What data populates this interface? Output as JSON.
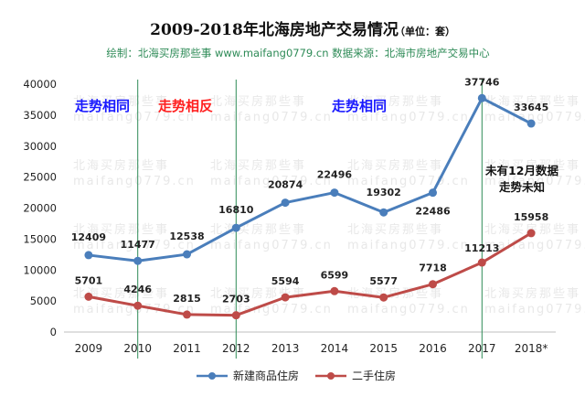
{
  "title": "2009-2018年北海房地产交易情况",
  "title_unit": "（单位：套）",
  "subtitle": "绘制：北海买房那些事 www.maifang0779.cn    数据来源：北海市房地产交易中心",
  "watermark": {
    "text_cn": "北海买房那些事",
    "text_url": "maifang0779.cn"
  },
  "annotations": {
    "trend_same_1": "走势相同",
    "trend_opposite": "走势相反",
    "trend_same_2": "走势相同",
    "note_line1": "未有12月数据",
    "note_line2": "走势未知"
  },
  "colors": {
    "new_homes": "#4a7ebb",
    "second_hand": "#be4b48",
    "divider": "#2e8b57",
    "annotation_blue": "#1a1aff",
    "annotation_red": "#ff2020"
  },
  "chart_data": {
    "type": "line",
    "categories": [
      "2009",
      "2010",
      "2011",
      "2012",
      "2013",
      "2014",
      "2015",
      "2016",
      "2017",
      "2018*"
    ],
    "series": [
      {
        "name": "新建商品住房",
        "values": [
          12409,
          11477,
          12538,
          16810,
          20874,
          22496,
          19302,
          22486,
          37746,
          33645
        ]
      },
      {
        "name": "二手住房",
        "values": [
          5701,
          4246,
          2815,
          2703,
          5594,
          6599,
          5577,
          7718,
          11213,
          15958
        ]
      }
    ],
    "ylim": [
      0,
      40000
    ],
    "yticks": [
      0,
      5000,
      10000,
      15000,
      20000,
      25000,
      30000,
      35000,
      40000
    ],
    "vertical_dividers_after_categories": [
      "2010",
      "2012",
      "2017"
    ],
    "legend_position": "bottom",
    "grid": false
  }
}
